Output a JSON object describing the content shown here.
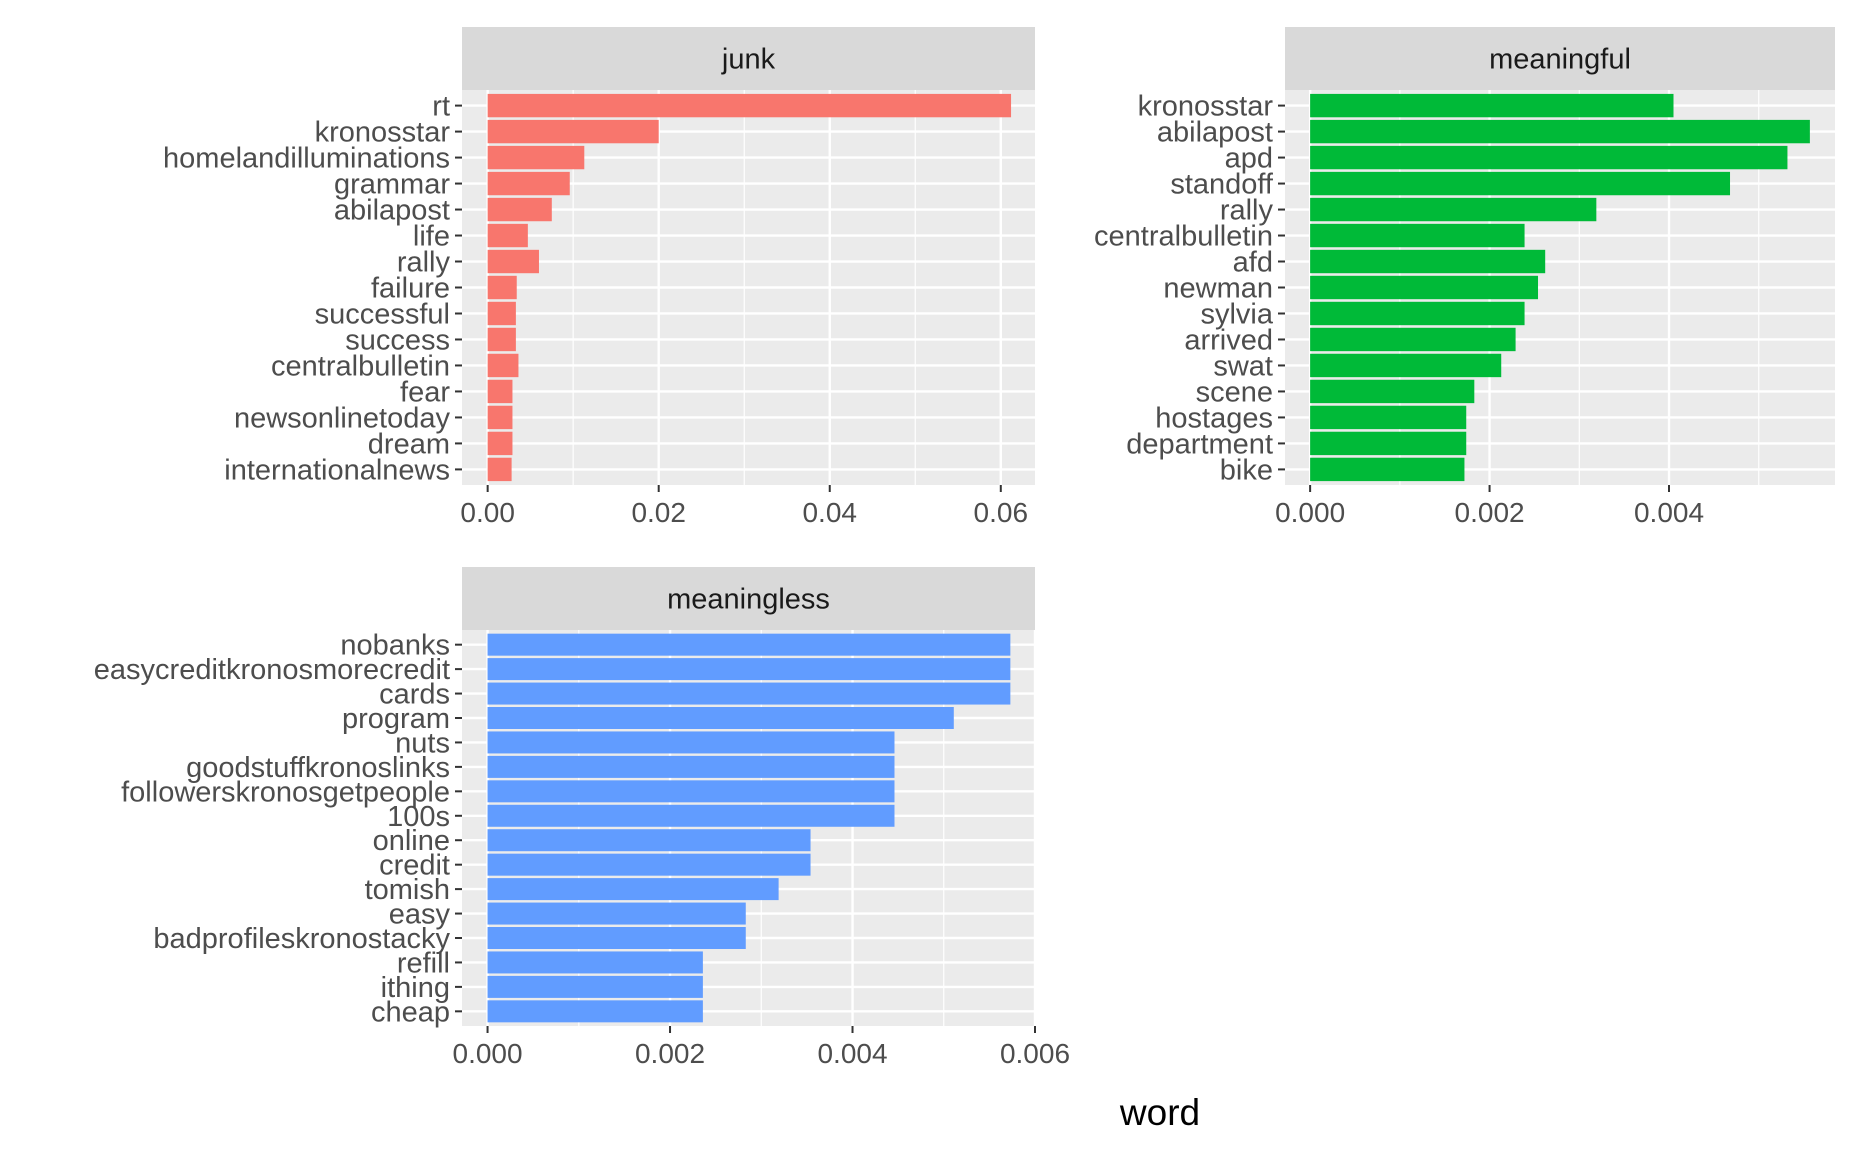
{
  "chart_data": [
    {
      "type": "bar",
      "orientation": "horizontal",
      "facet": "junk",
      "categories": [
        "rt",
        "kronosstar",
        "homelandilluminations",
        "grammar",
        "abilapost",
        "life",
        "rally",
        "failure",
        "successful",
        "success",
        "centralbulletin",
        "fear",
        "newsonlinetoday",
        "dream",
        "internationalnews"
      ],
      "values": [
        0.0612,
        0.02,
        0.0113,
        0.0096,
        0.0075,
        0.0047,
        0.006,
        0.0034,
        0.0033,
        0.0033,
        0.0036,
        0.0029,
        0.0029,
        0.0029,
        0.0028
      ],
      "xlim": [
        -0.003,
        0.064
      ],
      "xticks": [
        0.0,
        0.02,
        0.04,
        0.06
      ],
      "xtick_labels": [
        "0.00",
        "0.02",
        "0.04",
        "0.06"
      ],
      "color": "#F8766D"
    },
    {
      "type": "bar",
      "orientation": "horizontal",
      "facet": "meaningful",
      "categories": [
        "kronosstar",
        "abilapost",
        "apd",
        "standoff",
        "rally",
        "centralbulletin",
        "afd",
        "newman",
        "sylvia",
        "arrived",
        "swat",
        "scene",
        "hostages",
        "department",
        "bike"
      ],
      "values": [
        0.00405,
        0.00557,
        0.00532,
        0.00468,
        0.00319,
        0.00239,
        0.00262,
        0.00254,
        0.00239,
        0.00229,
        0.00213,
        0.00183,
        0.00174,
        0.00174,
        0.00172
      ],
      "xlim": [
        -0.00028,
        0.00585
      ],
      "xticks": [
        0.0,
        0.002,
        0.004
      ],
      "xtick_labels": [
        "0.000",
        "0.002",
        "0.004"
      ],
      "color": "#00BA38"
    },
    {
      "type": "bar",
      "orientation": "horizontal",
      "facet": "meaningless",
      "categories": [
        "nobanks",
        "easycreditkronosmorecredit",
        "cards",
        "program",
        "nuts",
        "goodstuffkronoslinks",
        "followerskronosgetpeople",
        "100s",
        "online",
        "credit",
        "tomish",
        "easy",
        "badprofileskronostacky",
        "refill",
        "ithing",
        "cheap"
      ],
      "values": [
        0.00573,
        0.00573,
        0.00573,
        0.00511,
        0.00446,
        0.00446,
        0.00446,
        0.00446,
        0.00354,
        0.00354,
        0.00319,
        0.00283,
        0.00283,
        0.00236,
        0.00236,
        0.00236
      ],
      "xlim": [
        -0.00028,
        0.006
      ],
      "xticks": [
        0.0,
        0.002,
        0.004,
        0.006
      ],
      "xtick_labels": [
        "0.000",
        "0.002",
        "0.004",
        "0.006"
      ],
      "color": "#619CFF"
    }
  ],
  "axis_title": "word",
  "colors": {
    "panel_background": "#EBEBEB",
    "strip_background": "#D9D9D9",
    "grid": "#FFFFFF",
    "text": "#4D4D4D",
    "title_text": "#1A1A1A"
  }
}
